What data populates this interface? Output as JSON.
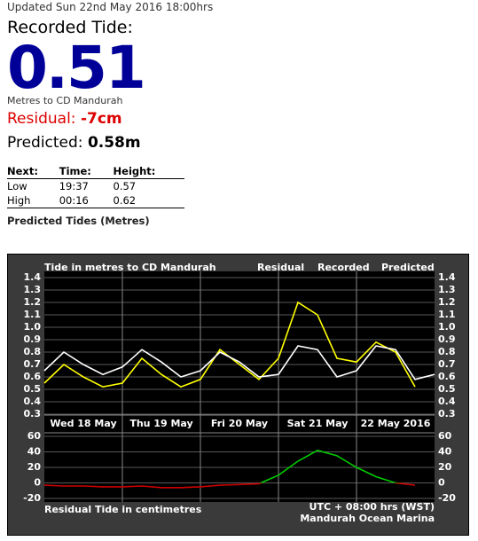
{
  "header": {
    "updated": "Updated Sun 22nd May 2016 18:00hrs",
    "title": "Recorded Tide:",
    "value": 0.51,
    "unit": "Metres to CD Mandurah",
    "residual_label": "Residual:",
    "residual": "-7cm",
    "predicted_label": "Predicted:",
    "predicted": "0.58m"
  },
  "table": {
    "columns": [
      "Next:",
      "Time:",
      "Height:"
    ],
    "rows": [
      [
        "Low",
        "19:37",
        0.57
      ],
      [
        "High",
        "00:16",
        0.62
      ]
    ]
  },
  "caption": "Predicted Tides (Metres)",
  "chart_data": [
    {
      "type": "line",
      "title": "Tide in metres to CD Mandurah",
      "x": [
        0,
        0.25,
        0.5,
        0.75,
        1,
        1.25,
        1.5,
        1.75,
        2,
        2.25,
        2.5,
        2.75,
        3,
        3.25,
        3.5,
        3.75,
        4,
        4.25,
        4.5,
        4.75,
        5
      ],
      "xlim": [
        0,
        5
      ],
      "xticks": [
        {
          "value": 0.5,
          "label": "Wed 18 May"
        },
        {
          "value": 1.5,
          "label": "Thu 19 May"
        },
        {
          "value": 2.5,
          "label": "Fri 20 May"
        },
        {
          "value": 3.5,
          "label": "Sat 21 May"
        },
        {
          "value": 4.5,
          "label": "22 May 2016"
        }
      ],
      "ylim": [
        0.3,
        1.4
      ],
      "yticks": [
        0.3,
        0.4,
        0.5,
        0.6,
        0.7,
        0.8,
        0.9,
        {
          "value": 1,
          "label": "1.0"
        },
        1.1,
        1.2,
        1.3,
        1.4
      ],
      "grid": true,
      "series": [
        {
          "name": "Recorded",
          "color": "#ffff00",
          "values": [
            0.55,
            0.7,
            0.6,
            0.52,
            0.55,
            0.75,
            0.62,
            0.52,
            0.58,
            0.82,
            0.7,
            0.58,
            0.75,
            1.2,
            1.1,
            0.75,
            0.72,
            0.88,
            0.8,
            0.52,
            null
          ]
        },
        {
          "name": "Predicted",
          "color": "#ffffff",
          "values": [
            0.65,
            0.8,
            0.7,
            0.62,
            0.68,
            0.82,
            0.72,
            0.6,
            0.65,
            0.8,
            0.72,
            0.6,
            0.62,
            0.85,
            0.82,
            0.6,
            0.65,
            0.85,
            0.82,
            0.58,
            0.62
          ]
        }
      ]
    },
    {
      "type": "line",
      "title": "Residual Tide in centimetres",
      "notes": [
        "UTC + 08:00 hrs (WST)",
        "Mandurah Ocean Marina"
      ],
      "x": [
        0,
        0.25,
        0.5,
        0.75,
        1,
        1.25,
        1.5,
        1.75,
        2,
        2.25,
        2.5,
        2.75,
        3,
        3.25,
        3.5,
        3.75,
        4,
        4.25,
        4.5,
        4.75,
        5
      ],
      "xlim": [
        0,
        5
      ],
      "ylim": [
        -20,
        60
      ],
      "yticks": [
        -20,
        0,
        20,
        40,
        60
      ],
      "grid": true,
      "series": [
        {
          "name": "Residual",
          "color": "#00cc00",
          "negative_color": "#cc0000",
          "values": [
            -3,
            -4,
            -4,
            -5,
            -5,
            -4,
            -6,
            -6,
            -5,
            -3,
            -2,
            -1,
            10,
            28,
            42,
            35,
            20,
            8,
            0,
            -3,
            null
          ]
        }
      ]
    }
  ]
}
